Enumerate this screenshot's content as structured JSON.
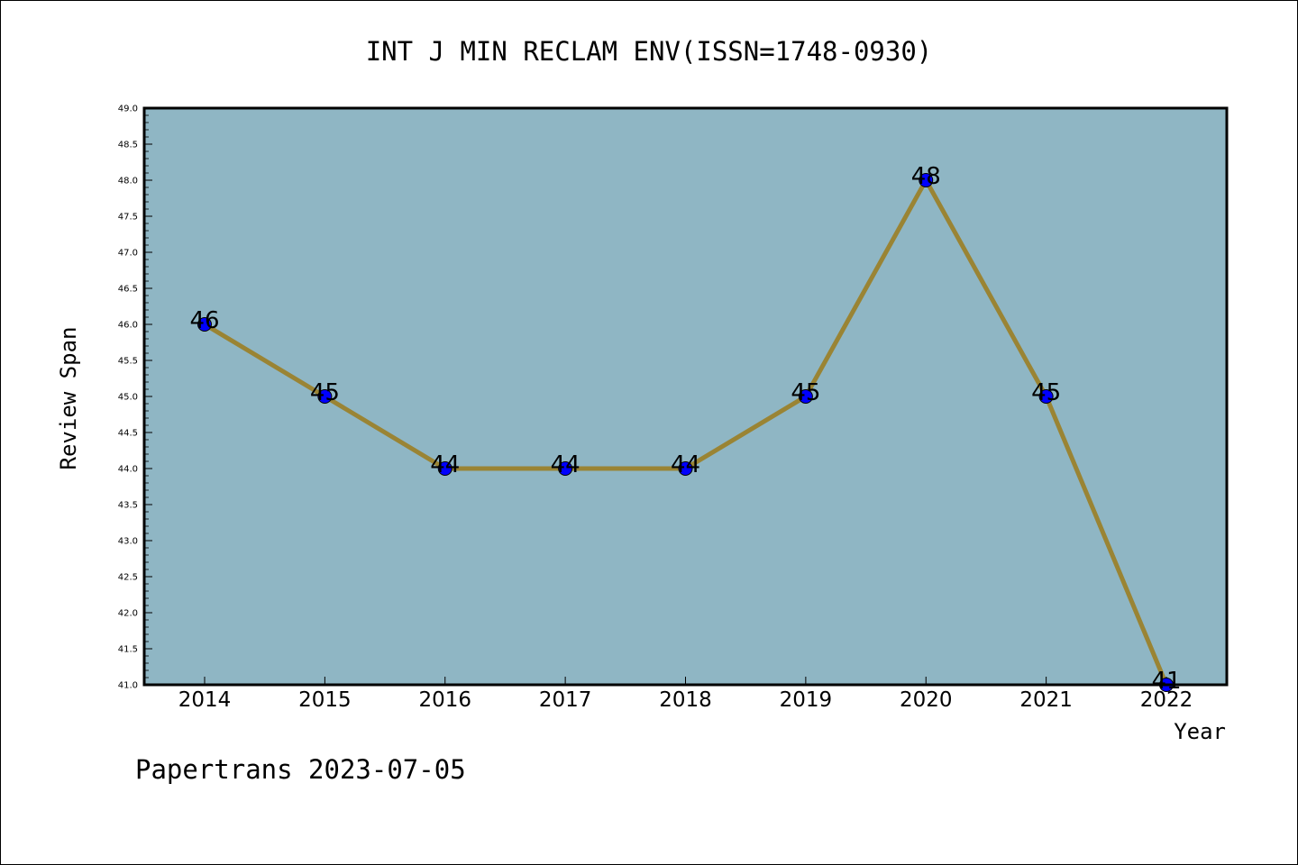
{
  "chart_data": {
    "type": "line",
    "title": "INT J MIN RECLAM ENV(ISSN=1748-0930)",
    "xlabel": "Year",
    "ylabel": "Review Span",
    "categories": [
      "2014",
      "2015",
      "2016",
      "2017",
      "2018",
      "2019",
      "2020",
      "2021",
      "2022"
    ],
    "series": [
      {
        "values": [
          46,
          45,
          44,
          44,
          44,
          45,
          48,
          45,
          41
        ]
      }
    ],
    "data_labels": [
      "46",
      "45",
      "44",
      "44",
      "44",
      "45",
      "48",
      "45",
      "41"
    ],
    "ylim": [
      41.0,
      49.0
    ],
    "yticks": [
      "41.0",
      "41.5",
      "42.0",
      "42.5",
      "43.0",
      "43.5",
      "44.0",
      "44.5",
      "45.0",
      "45.5",
      "46.0",
      "46.5",
      "47.0",
      "47.5",
      "48.0",
      "48.5",
      "49.0"
    ],
    "grid": false,
    "legend": "none",
    "colors": {
      "plot_background": "#8fb6c4",
      "line": "#9a8434",
      "marker": "#0000ff"
    }
  },
  "footer": "Papertrans 2023-07-05"
}
